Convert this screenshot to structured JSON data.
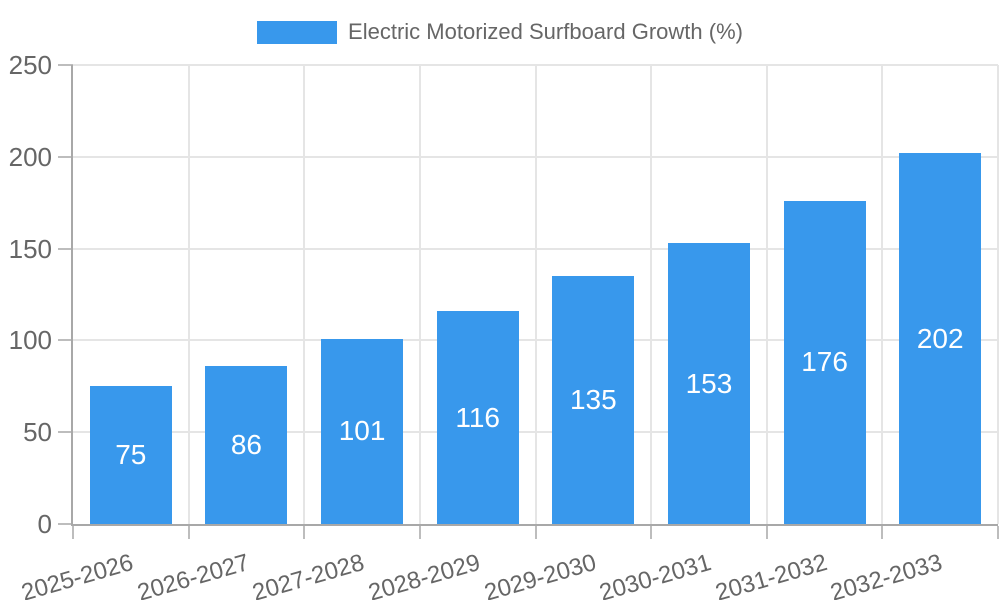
{
  "legend": {
    "label": "Electric Motorized Surfboard Growth (%)"
  },
  "chart_data": {
    "type": "bar",
    "title": "Electric Motorized Surfboard Growth (%)",
    "categories": [
      "2025-2026",
      "2026-2027",
      "2027-2028",
      "2028-2029",
      "2029-2030",
      "2030-2031",
      "2031-2032",
      "2032-2033"
    ],
    "values": [
      75,
      86,
      101,
      116,
      135,
      153,
      176,
      202
    ],
    "xlabel": "",
    "ylabel": "",
    "ylim": [
      0,
      250
    ],
    "yticks": [
      0,
      50,
      100,
      150,
      200,
      250
    ],
    "grid": true,
    "legend_position": "top",
    "colors": {
      "bar": "#3898ec",
      "value_label": "#ffffff",
      "tick_text": "#666666",
      "grid": "#e5e5e5",
      "tick_mark": "#bdbdbd",
      "axis": "#a8a8a8"
    }
  }
}
